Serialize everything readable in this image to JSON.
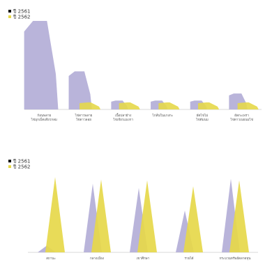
{
  "colors": {
    "y2561": "#b5b0d8",
    "y2562": "#e6d84a",
    "axis": "#d8d8d8",
    "legend_black": "#111111"
  },
  "chart_data": [
    {
      "type": "area",
      "shape": "mountain",
      "legend": [
        "ปี 2561",
        "ปี 2562"
      ],
      "legend_position": "top-left",
      "grid": false,
      "categories": [
        [
          "ก้อนพลาย",
          "ไข่มุกเม็ดเดียวกลม"
        ],
        [
          "ไข่ดาวพลาย",
          "ไข่ดาวลอย"
        ],
        [
          "เนื้อปลาย้าง",
          "ไข่เจียวแมงกา"
        ],
        [
          "ไก่สั่นในแกงกะ"
        ],
        [
          "ผัดไข่ไม่",
          "ไข่ต้มนม"
        ],
        [
          "ผัดกะเพรา",
          "ไข่ดาวเนยนมไข่"
        ]
      ],
      "series": [
        {
          "name": "ปี 2561",
          "values": [
            100,
            43,
            10,
            10,
            10,
            18
          ]
        },
        {
          "name": "ปี 2562",
          "values": [
            0,
            8,
            8,
            8,
            8,
            8
          ]
        }
      ],
      "ylim": [
        0,
        100
      ]
    },
    {
      "type": "area",
      "shape": "triangle",
      "legend": [
        "ปี 2561",
        "ปี 2562"
      ],
      "legend_position": "top-left",
      "grid": false,
      "categories": [
        "สถานะ",
        "กลางเมือง",
        "เขาศึกษา",
        "รายได้",
        "กระบวนทรัพย์ตลาดทุน"
      ],
      "series": [
        {
          "name": "ปี 2561",
          "values": [
            8,
            82,
            77,
            50,
            88
          ]
        },
        {
          "name": "ปี 2562",
          "values": [
            90,
            87,
            86,
            79,
            86
          ]
        }
      ],
      "ylim": [
        0,
        100
      ]
    }
  ]
}
